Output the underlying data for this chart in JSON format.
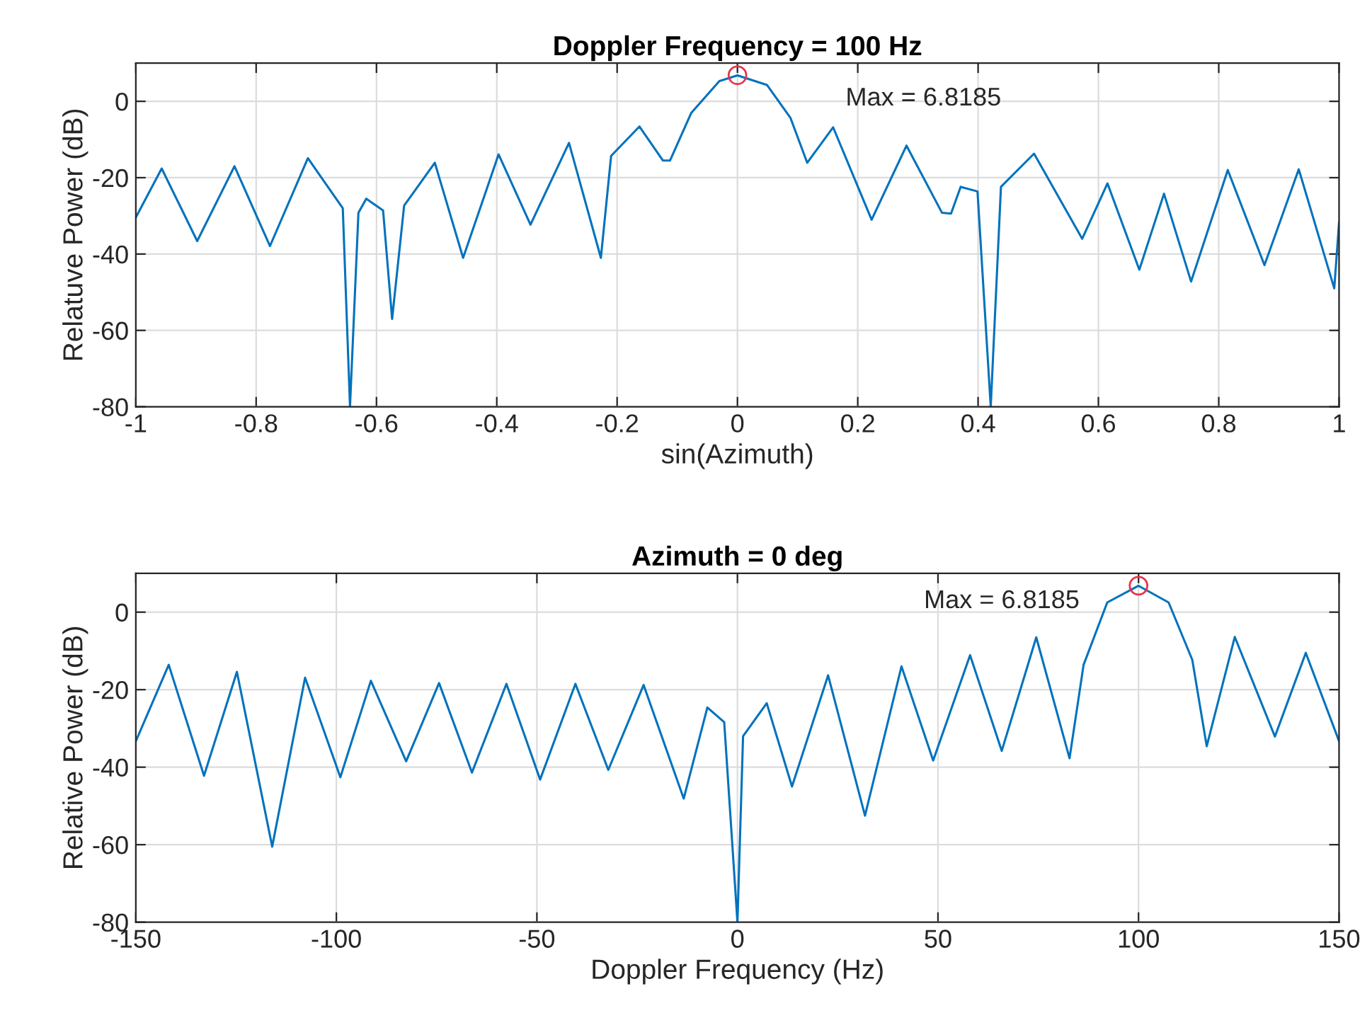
{
  "chart_data": [
    {
      "type": "line",
      "title": "Doppler Frequency = 100 Hz",
      "xlabel": "sin(Azimuth)",
      "ylabel": "Relatuve Power (dB)",
      "xlim": [
        -1,
        1
      ],
      "xticks": [
        -1,
        -0.8,
        -0.6,
        -0.4,
        -0.2,
        0,
        0.2,
        0.4,
        0.6,
        0.8,
        1
      ],
      "ylim": [
        -80,
        10
      ],
      "yticks": [
        -80,
        -60,
        -40,
        -20,
        0
      ],
      "grid": true,
      "legend": false,
      "series": [
        {
          "color": "#0072bd",
          "x": [
            -1,
            -0.957,
            -0.898,
            -0.836,
            -0.777,
            -0.714,
            -0.656,
            -0.644,
            -0.63,
            -0.617,
            -0.589,
            -0.574,
            -0.554,
            -0.503,
            -0.456,
            -0.397,
            -0.344,
            -0.28,
            -0.227,
            -0.21,
            -0.163,
            -0.124,
            -0.112,
            -0.077,
            -0.03,
            0,
            0.049,
            0.088,
            0.116,
            0.159,
            0.223,
            0.281,
            0.34,
            0.355,
            0.371,
            0.399,
            0.421,
            0.438,
            0.493,
            0.573,
            0.615,
            0.668,
            0.709,
            0.754,
            0.815,
            0.876,
            0.933,
            0.992,
            1
          ],
          "values": [
            -30.4,
            -17.6,
            -36.6,
            -17.0,
            -37.9,
            -14.9,
            -28,
            -80,
            -29.2,
            -25.5,
            -28.6,
            -57,
            -27.3,
            -16.1,
            -41,
            -13.9,
            -32.3,
            -10.9,
            -41,
            -14.3,
            -6.6,
            -15.5,
            -15.5,
            -3.1,
            5.3,
            6.8,
            4.3,
            -4.3,
            -16.1,
            -6.8,
            -31,
            -11.6,
            -29.2,
            -29.4,
            -22.4,
            -23.6,
            -80,
            -22.4,
            -13.7,
            -36,
            -21.5,
            -44.1,
            -24.2,
            -47.2,
            -18,
            -42.9,
            -17.8,
            -49,
            -31.7
          ]
        },
        {
          "type": "scatter",
          "color": "#e8334a",
          "marker": "circle",
          "x": [
            0
          ],
          "values": [
            6.8185
          ]
        }
      ],
      "annotations": [
        "Max = 6.8185"
      ]
    },
    {
      "type": "line",
      "title": "Azimuth = 0 deg",
      "xlabel": "Doppler Frequency (Hz)",
      "ylabel": "Relative Power (dB)",
      "xlim": [
        -150,
        150
      ],
      "xticks": [
        -150,
        -100,
        -50,
        0,
        50,
        100,
        150
      ],
      "ylim": [
        -80,
        10
      ],
      "yticks": [
        -80,
        -60,
        -40,
        -20,
        0
      ],
      "grid": true,
      "legend": false,
      "series": [
        {
          "color": "#0072bd",
          "x": [
            -150,
            -141.8,
            -133,
            -124.8,
            -116,
            -107.8,
            -99,
            -91.4,
            -82.6,
            -74.4,
            -66.2,
            -57.6,
            -49.2,
            -40.4,
            -32.2,
            -23.4,
            -13.4,
            -7.5,
            -3.3,
            0,
            1.4,
            7.3,
            13.6,
            22.6,
            31.8,
            40.9,
            48.8,
            58,
            65.9,
            74.5,
            82.8,
            86.3,
            92.2,
            100,
            107.5,
            113.4,
            117,
            124,
            134,
            141.7,
            150
          ],
          "values": [
            -33.3,
            -13.6,
            -42.2,
            -15.4,
            -60.5,
            -16.9,
            -42.6,
            -17.7,
            -38.5,
            -18.3,
            -41.4,
            -18.5,
            -43.2,
            -18.5,
            -40.7,
            -18.8,
            -48.1,
            -24.6,
            -28.4,
            -80,
            -32,
            -23.5,
            -45,
            -16.3,
            -52.5,
            -14,
            -38.3,
            -11.1,
            -35.8,
            -6.5,
            -37.7,
            -13.6,
            2.5,
            6.8,
            2.5,
            -12.3,
            -34.6,
            -6.4,
            -32.1,
            -10.5,
            -33.3
          ]
        },
        {
          "type": "scatter",
          "color": "#e8334a",
          "marker": "circle",
          "x": [
            100
          ],
          "values": [
            6.8185
          ]
        }
      ],
      "annotations": [
        "Max = 6.8185"
      ]
    }
  ]
}
